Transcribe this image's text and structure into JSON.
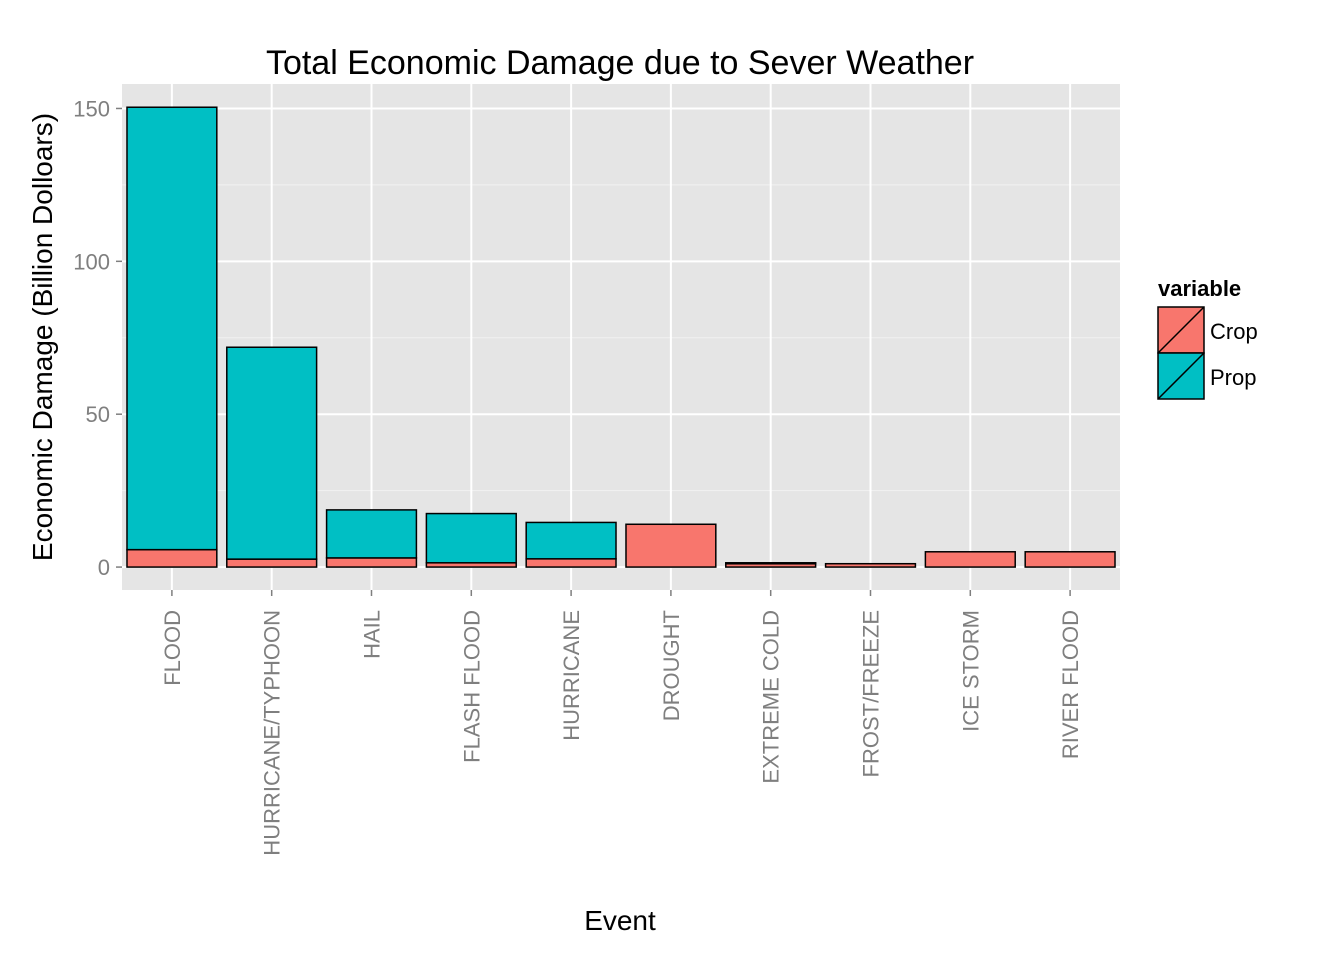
{
  "chart_data": {
    "type": "bar",
    "stacked": true,
    "title": "Total Economic Damage due to Sever Weather",
    "xlabel": "Event",
    "ylabel": "Economic Damage (Billion Dolloars)",
    "categories": [
      "FLOOD",
      "HURRICANE/TYPHOON",
      "HAIL",
      "FLASH FLOOD",
      "HURRICANE",
      "DROUGHT",
      "EXTREME COLD",
      "FROST/FREEZE",
      "ICE STORM",
      "RIVER FLOOD"
    ],
    "series": [
      {
        "name": "Crop",
        "color": "#F8766D",
        "values": [
          5.7,
          2.6,
          3.0,
          1.4,
          2.7,
          14.0,
          1.3,
          1.1,
          5.0,
          5.0
        ]
      },
      {
        "name": "Prop",
        "color": "#00BFC4",
        "values": [
          144.7,
          69.3,
          15.7,
          16.1,
          11.9,
          0.0,
          0.1,
          0.0,
          0.0,
          0.0
        ]
      }
    ],
    "ylim": [
      -7.5,
      158
    ],
    "yticks": [
      0,
      50,
      100,
      150
    ],
    "legend": {
      "title": "variable",
      "position": "right"
    },
    "grid": true,
    "background": "#E5E5E5"
  }
}
